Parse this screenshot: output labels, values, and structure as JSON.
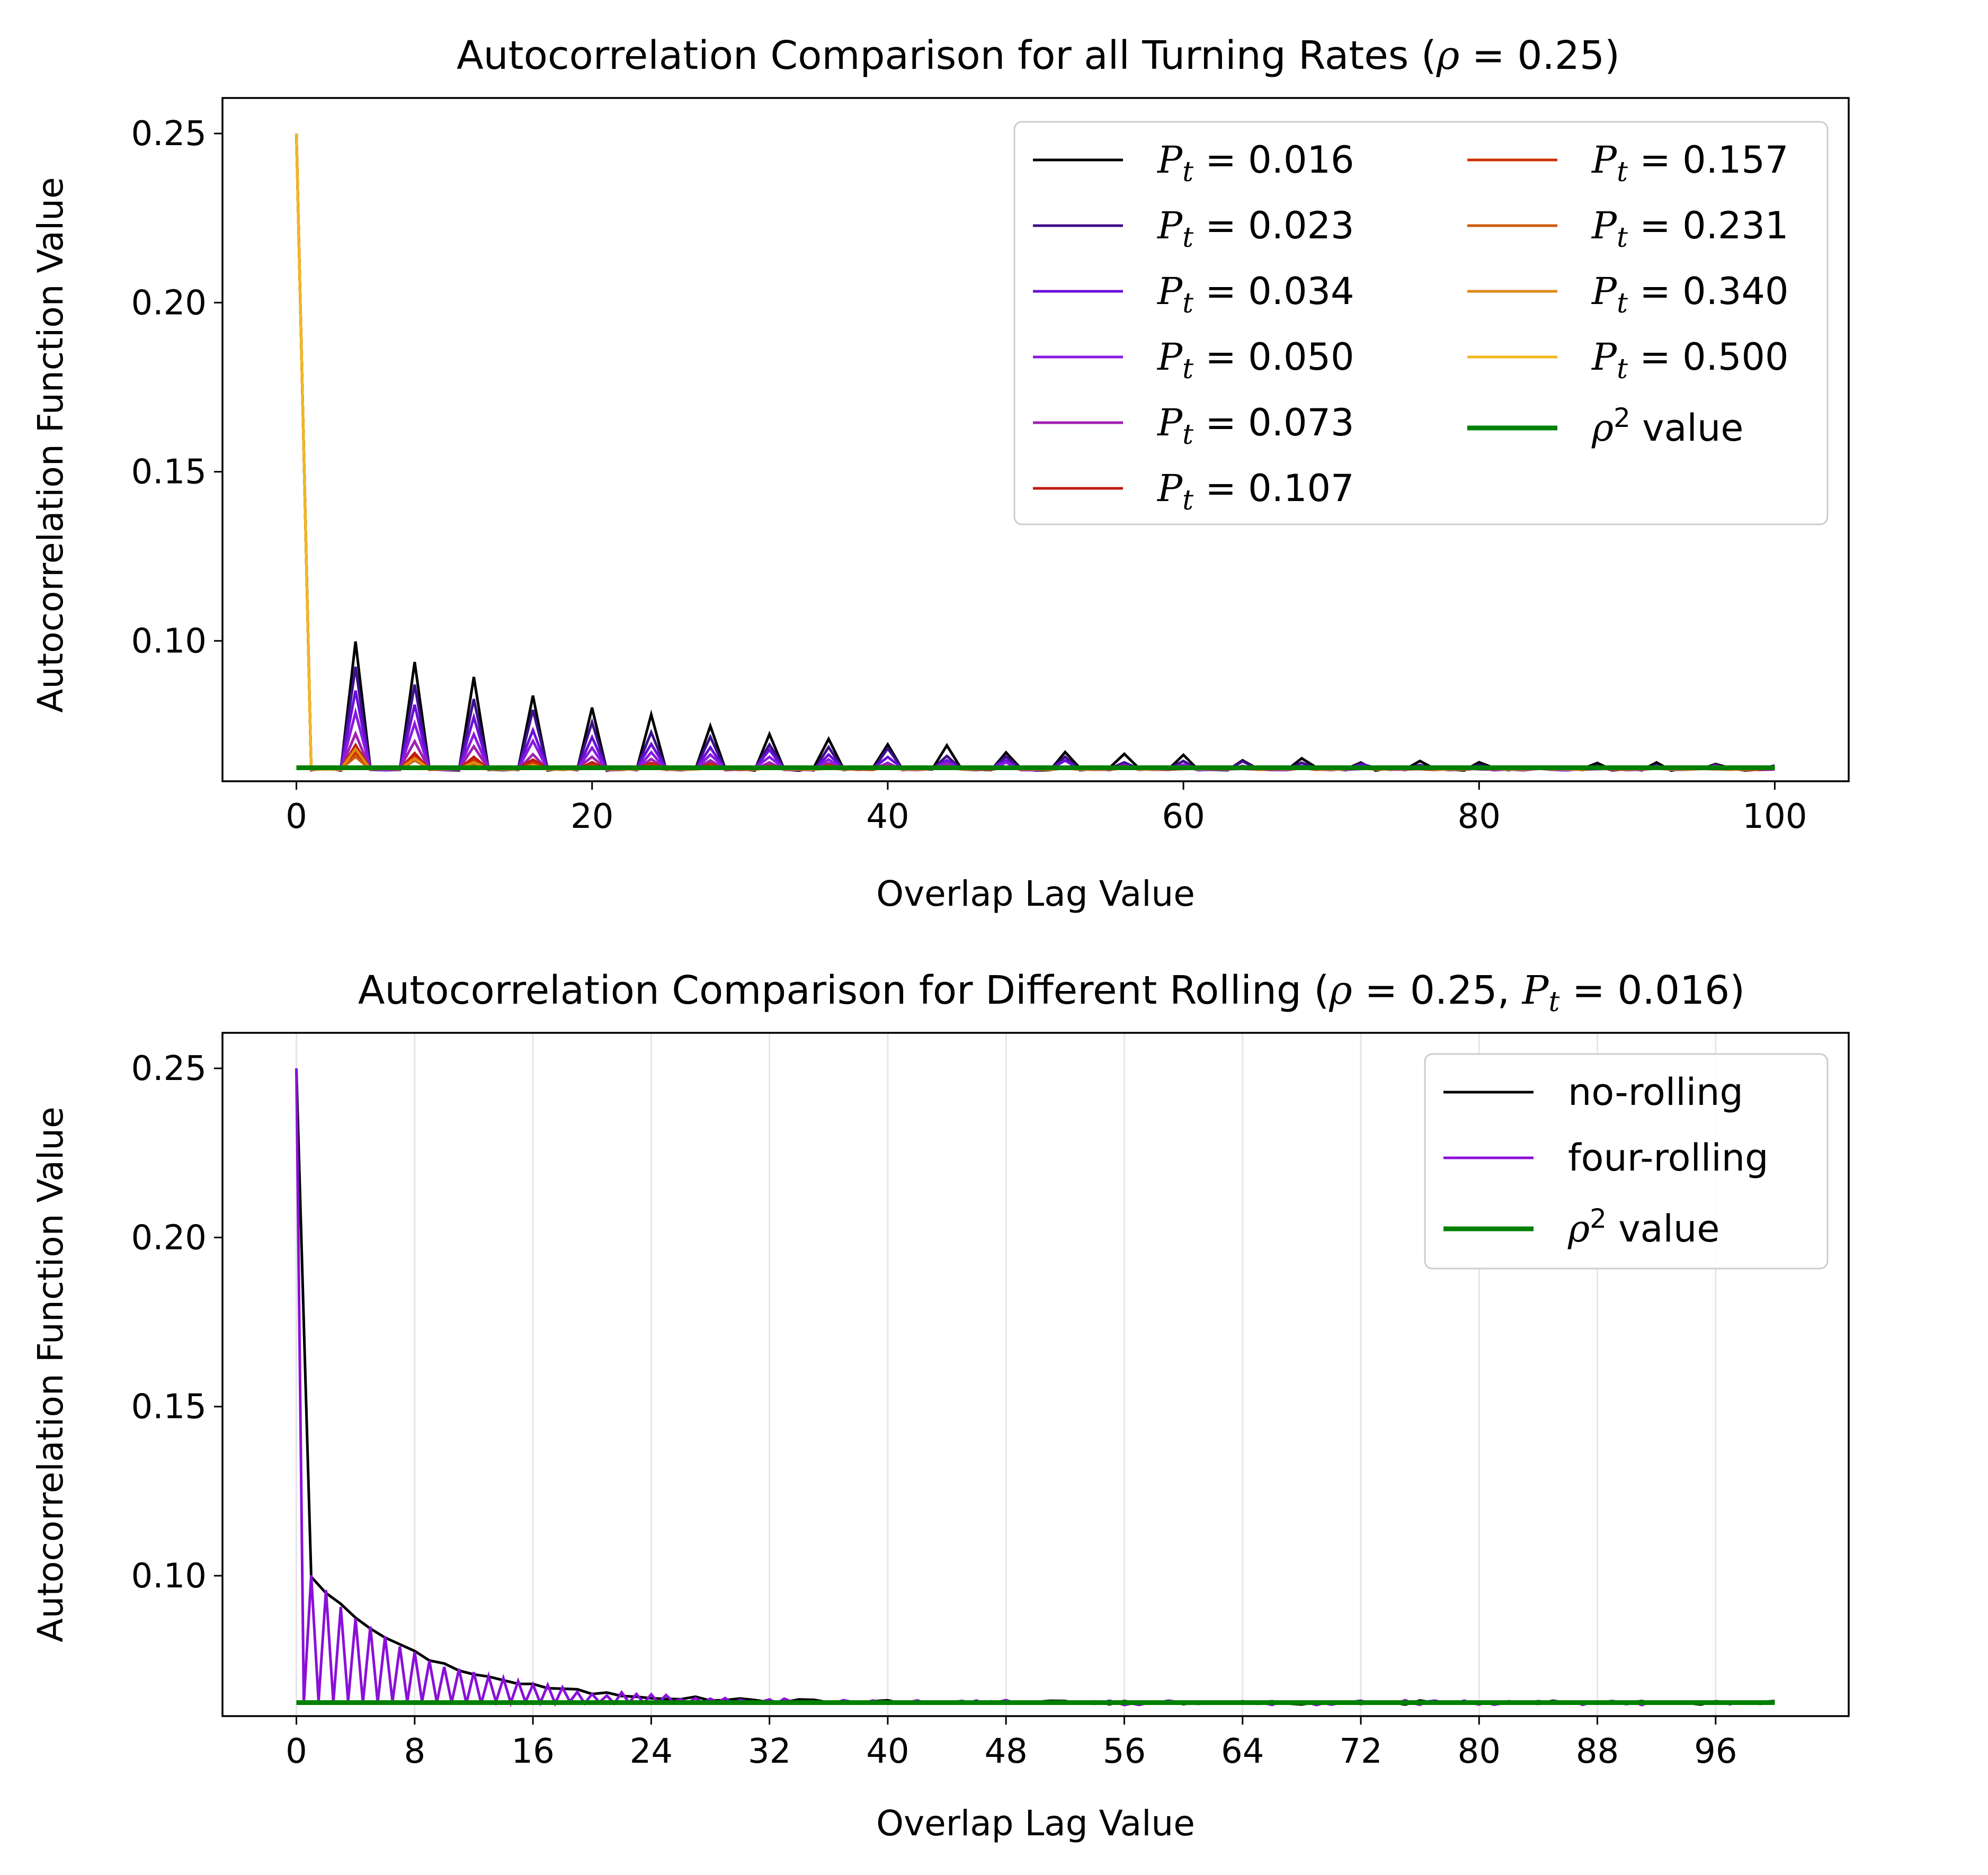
{
  "chart_data": [
    {
      "type": "line",
      "title": "Autocorrelation Comparison for all Turning Rates (ρ = 0.25)",
      "xlabel": "Overlap Lag Value",
      "ylabel": "Autocorrelation Function Value",
      "xlim": [
        -5,
        105
      ],
      "ylim": [
        0.0585,
        0.2605
      ],
      "xticks": [
        0,
        20,
        40,
        60,
        80,
        100
      ],
      "yticks": [
        0.1,
        0.15,
        0.2,
        0.25
      ],
      "grid": false,
      "legend_position": "top-right",
      "legend_columns": 2,
      "rho2": 0.0625,
      "series": [
        {
          "name": "P_t = 0.016",
          "color": "#000000",
          "peak": 0.1,
          "decay": 22,
          "noise": 0.0012
        },
        {
          "name": "P_t = 0.023",
          "color": "#3d0f8a",
          "peak": 0.093,
          "decay": 20,
          "noise": 0.001
        },
        {
          "name": "P_t = 0.034",
          "color": "#6a0fd8",
          "peak": 0.085,
          "decay": 18,
          "noise": 0.0009
        },
        {
          "name": "P_t = 0.050",
          "color": "#8a1ae0",
          "peak": 0.079,
          "decay": 16,
          "noise": 0.0008
        },
        {
          "name": "P_t = 0.073",
          "color": "#a020b0",
          "peak": 0.073,
          "decay": 14,
          "noise": 0.0007
        },
        {
          "name": "P_t = 0.107",
          "color": "#c01a10",
          "peak": 0.069,
          "decay": 12,
          "noise": 0.0006
        },
        {
          "name": "P_t = 0.157",
          "color": "#cc3000",
          "peak": 0.067,
          "decay": 10,
          "noise": 0.0005
        },
        {
          "name": "P_t = 0.231",
          "color": "#d05a10",
          "peak": 0.066,
          "decay": 8,
          "noise": 0.0004
        },
        {
          "name": "P_t = 0.340",
          "color": "#e08a10",
          "peak": 0.068,
          "decay": 6,
          "noise": 0.0003
        },
        {
          "name": "P_t = 0.500",
          "color": "#f0b820",
          "peak": 0.0625,
          "decay": 4,
          "noise": 0.0002
        }
      ],
      "reference": {
        "name": "ρ² value",
        "value": 0.0625,
        "color": "#008000"
      },
      "lag0_value": 0.25,
      "period": 4,
      "max_lag": 100
    },
    {
      "type": "line",
      "title": "Autocorrelation Comparison for Different Rolling (ρ = 0.25, P_t = 0.016)",
      "xlabel": "Overlap Lag Value",
      "ylabel": "Autocorrelation Function Value",
      "xlim": [
        -5,
        105
      ],
      "ylim": [
        0.0585,
        0.2605
      ],
      "xticks": [
        0,
        8,
        16,
        24,
        32,
        40,
        48,
        56,
        64,
        72,
        80,
        88,
        96
      ],
      "yticks": [
        0.1,
        0.15,
        0.2,
        0.25
      ],
      "grid": "vertical",
      "legend_position": "top-right",
      "rho2": 0.0625,
      "series": [
        {
          "name": "no-rolling",
          "color": "#000000"
        },
        {
          "name": "four-rolling",
          "color": "#8a10d8"
        }
      ],
      "reference": {
        "name": "ρ² value",
        "value": 0.0625,
        "color": "#008000"
      },
      "lag0_value": 0.25,
      "max_lag": 100
    }
  ],
  "labels": {
    "top_title_prefix": "Autocorrelation Comparison for all Turning Rates (",
    "top_title_rho": "ρ",
    "top_title_suffix": " = 0.25)",
    "bottom_title_prefix": "Autocorrelation Comparison for Different Rolling (",
    "bottom_title_rho": "ρ",
    "bottom_title_mid": " = 0.25, ",
    "bottom_title_P": "P",
    "bottom_title_t": "t",
    "bottom_title_suffix": " = 0.016)",
    "xlabel": "Overlap Lag Value",
    "ylabel": "Autocorrelation Function Value"
  }
}
